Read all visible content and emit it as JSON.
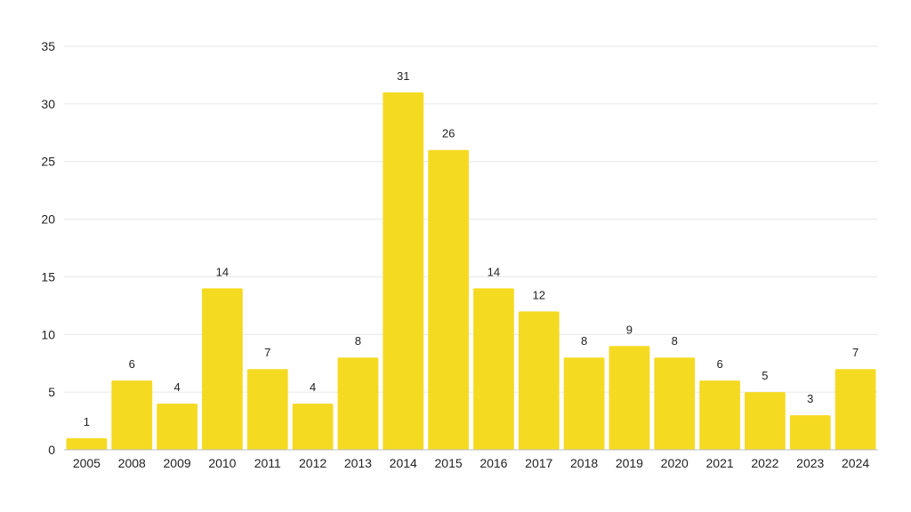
{
  "chart_data": {
    "type": "bar",
    "title": "",
    "xlabel": "",
    "ylabel": "",
    "categories": [
      "2005",
      "2008",
      "2009",
      "2010",
      "2011",
      "2012",
      "2013",
      "2014",
      "2015",
      "2016",
      "2017",
      "2018",
      "2019",
      "2020",
      "2021",
      "2022",
      "2023",
      "2024"
    ],
    "values": [
      1,
      6,
      4,
      14,
      7,
      4,
      8,
      31,
      26,
      14,
      12,
      8,
      9,
      8,
      6,
      5,
      3,
      7
    ],
    "ylim": [
      0,
      35
    ],
    "yticks": [
      0,
      5,
      10,
      15,
      20,
      25,
      30,
      35
    ],
    "grid": true,
    "legend": "none",
    "data_labels": true,
    "bar_color": "#F5DA22"
  }
}
